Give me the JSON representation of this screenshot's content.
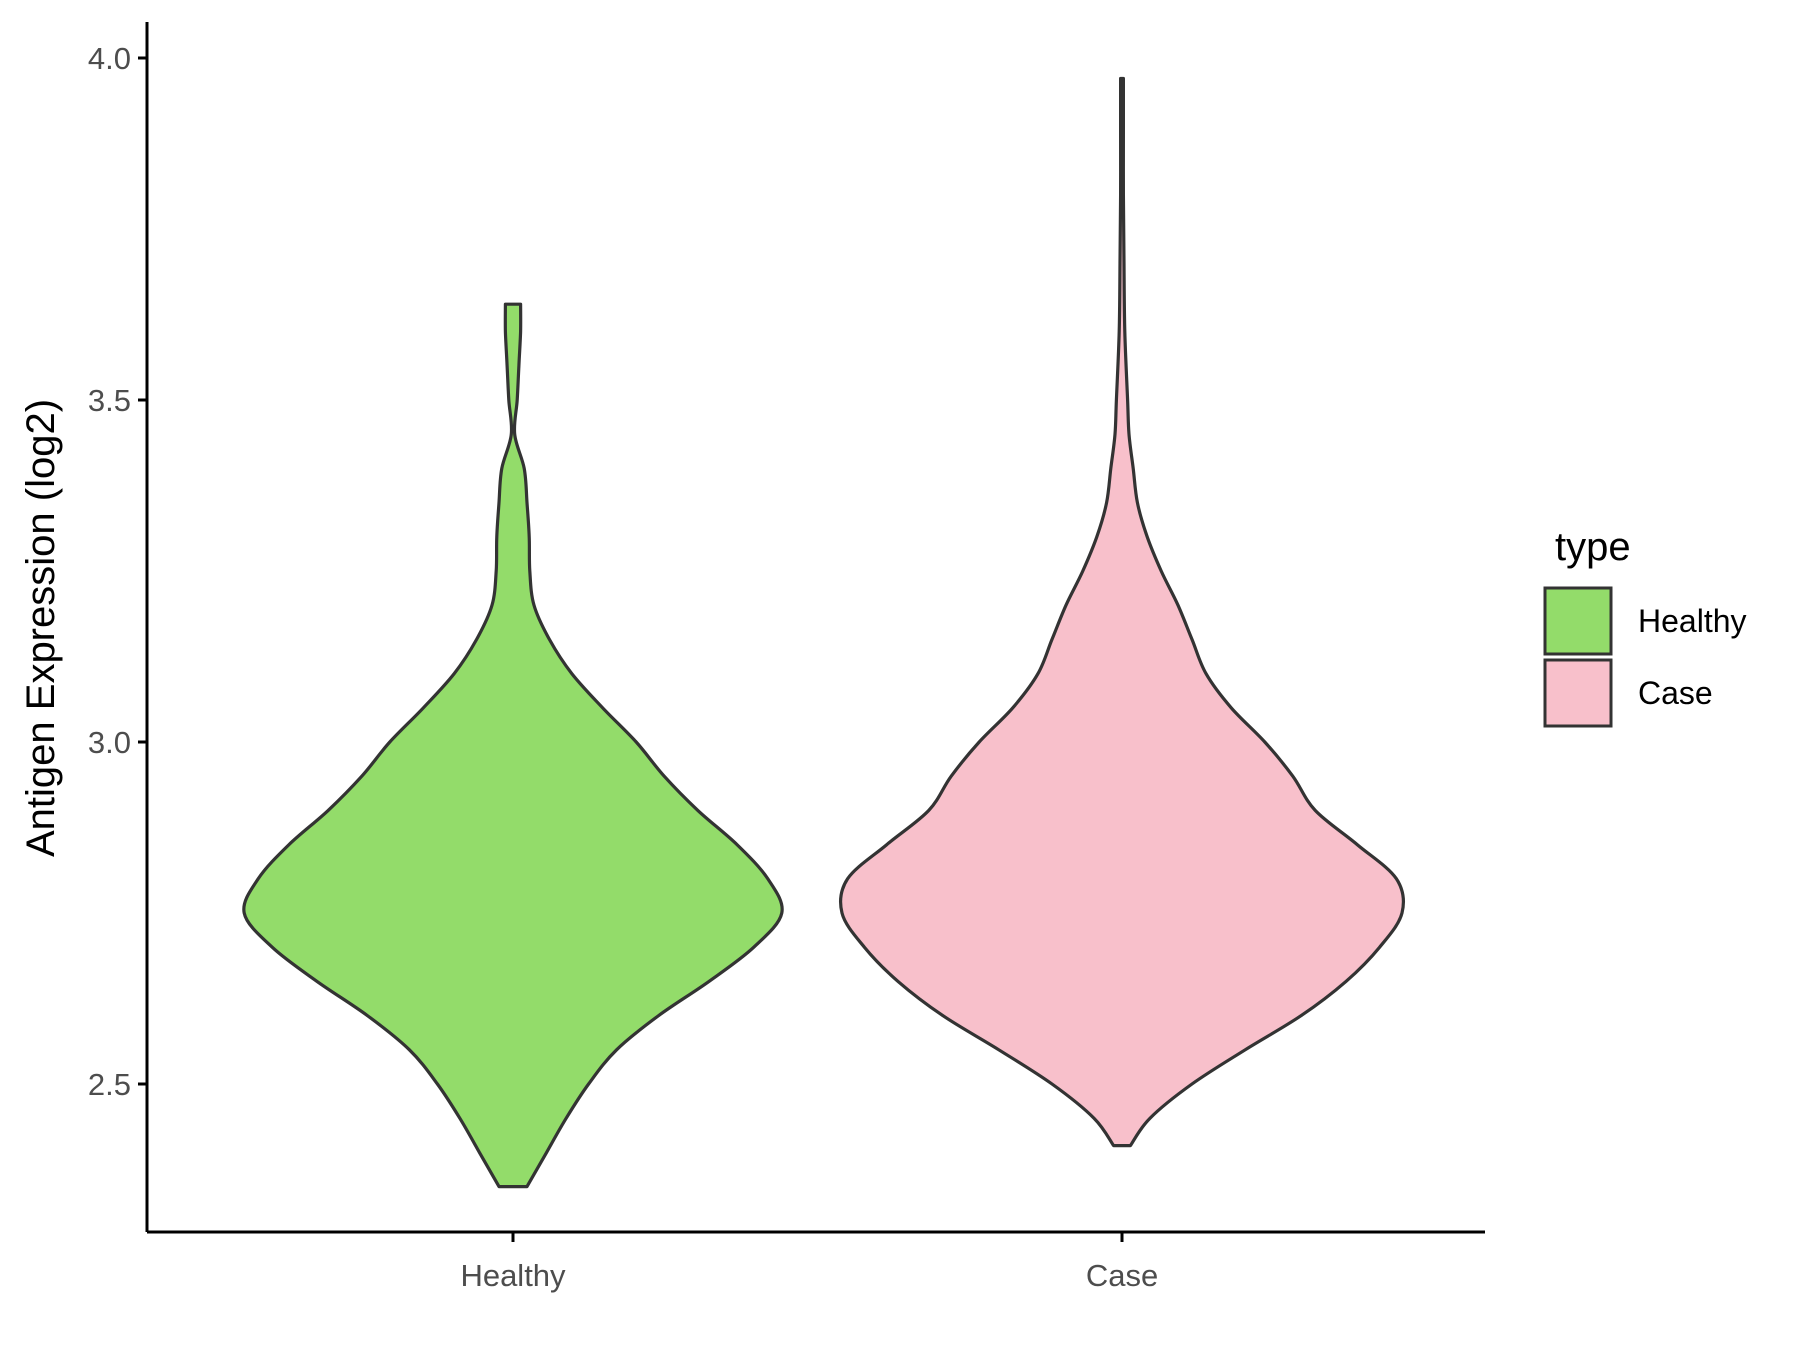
{
  "chart_data": {
    "type": "violin",
    "ylabel": "Antigen Expression (log2)",
    "ylim": [
      2.27,
      4.05
    ],
    "yticks": [
      {
        "value": 2.5,
        "label": "2.5"
      },
      {
        "value": 3.0,
        "label": "3.0"
      },
      {
        "value": 3.5,
        "label": "3.5"
      },
      {
        "value": 4.0,
        "label": "4.0"
      }
    ],
    "categories": [
      "Healthy",
      "Case"
    ],
    "grid": false,
    "legend": {
      "title": "type",
      "placement": "right",
      "entries": [
        {
          "label": "Healthy",
          "color": "#93dc6a"
        },
        {
          "label": "Case",
          "color": "#f8c0cb"
        }
      ]
    },
    "series": [
      {
        "name": "Healthy",
        "color": "#93dc6a",
        "min": 2.35,
        "max": 3.64,
        "density": [
          [
            2.35,
            0.05
          ],
          [
            2.4,
            0.12
          ],
          [
            2.45,
            0.19
          ],
          [
            2.5,
            0.27
          ],
          [
            2.55,
            0.37
          ],
          [
            2.6,
            0.52
          ],
          [
            2.65,
            0.7
          ],
          [
            2.7,
            0.86
          ],
          [
            2.75,
            0.96
          ],
          [
            2.8,
            0.91
          ],
          [
            2.85,
            0.8
          ],
          [
            2.9,
            0.66
          ],
          [
            2.95,
            0.54
          ],
          [
            3.0,
            0.44
          ],
          [
            3.05,
            0.32
          ],
          [
            3.1,
            0.21
          ],
          [
            3.15,
            0.13
          ],
          [
            3.2,
            0.075
          ],
          [
            3.25,
            0.06
          ],
          [
            3.3,
            0.058
          ],
          [
            3.35,
            0.05
          ],
          [
            3.4,
            0.04
          ],
          [
            3.45,
            0.006
          ],
          [
            3.5,
            0.015
          ],
          [
            3.55,
            0.021
          ],
          [
            3.6,
            0.027
          ],
          [
            3.64,
            0.027
          ]
        ]
      },
      {
        "name": "Case",
        "color": "#f8c0cb",
        "min": 2.41,
        "max": 3.97,
        "density": [
          [
            2.41,
            0.03
          ],
          [
            2.45,
            0.1
          ],
          [
            2.5,
            0.25
          ],
          [
            2.55,
            0.44
          ],
          [
            2.6,
            0.64
          ],
          [
            2.65,
            0.8
          ],
          [
            2.7,
            0.92
          ],
          [
            2.75,
            1.0
          ],
          [
            2.8,
            0.98
          ],
          [
            2.85,
            0.84
          ],
          [
            2.9,
            0.69
          ],
          [
            2.95,
            0.61
          ],
          [
            3.0,
            0.51
          ],
          [
            3.05,
            0.39
          ],
          [
            3.1,
            0.3
          ],
          [
            3.15,
            0.25
          ],
          [
            3.2,
            0.2
          ],
          [
            3.25,
            0.14
          ],
          [
            3.3,
            0.09
          ],
          [
            3.35,
            0.055
          ],
          [
            3.4,
            0.04
          ],
          [
            3.45,
            0.025
          ],
          [
            3.5,
            0.02
          ],
          [
            3.6,
            0.01
          ],
          [
            3.7,
            0.007
          ],
          [
            3.8,
            0.005
          ],
          [
            3.9,
            0.005
          ],
          [
            3.97,
            0.005
          ]
        ]
      }
    ]
  }
}
